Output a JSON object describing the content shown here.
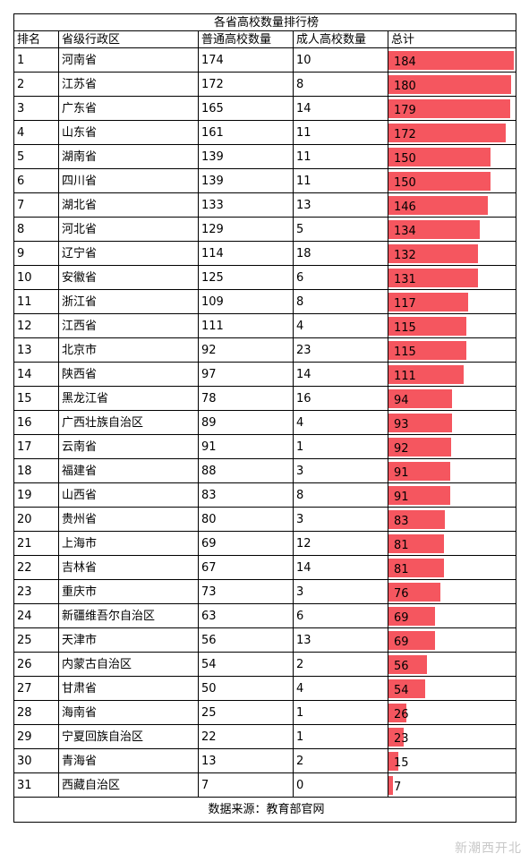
{
  "title": "各省高校数量排行榜",
  "headers": [
    "排名",
    "省级行政区",
    "普通高校数量",
    "成人高校数量",
    "总计"
  ],
  "rows": [
    {
      "rank": "1",
      "province": "河南省",
      "regular": "174",
      "adult": "10",
      "total": "184"
    },
    {
      "rank": "2",
      "province": "江苏省",
      "regular": "172",
      "adult": "8",
      "total": "180"
    },
    {
      "rank": "3",
      "province": "广东省",
      "regular": "165",
      "adult": "14",
      "total": "179"
    },
    {
      "rank": "4",
      "province": "山东省",
      "regular": "161",
      "adult": "11",
      "total": "172"
    },
    {
      "rank": "5",
      "province": "湖南省",
      "regular": "139",
      "adult": "11",
      "total": "150"
    },
    {
      "rank": "6",
      "province": "四川省",
      "regular": "139",
      "adult": "11",
      "total": "150"
    },
    {
      "rank": "7",
      "province": "湖北省",
      "regular": "133",
      "adult": "13",
      "total": "146"
    },
    {
      "rank": "8",
      "province": "河北省",
      "regular": "129",
      "adult": "5",
      "total": "134"
    },
    {
      "rank": "9",
      "province": "辽宁省",
      "regular": "114",
      "adult": "18",
      "total": "132"
    },
    {
      "rank": "10",
      "province": "安徽省",
      "regular": "125",
      "adult": "6",
      "total": "131"
    },
    {
      "rank": "11",
      "province": "浙江省",
      "regular": "109",
      "adult": "8",
      "total": "117"
    },
    {
      "rank": "12",
      "province": "江西省",
      "regular": "111",
      "adult": "4",
      "total": "115"
    },
    {
      "rank": "13",
      "province": "北京市",
      "regular": "92",
      "adult": "23",
      "total": "115"
    },
    {
      "rank": "14",
      "province": "陕西省",
      "regular": "97",
      "adult": "14",
      "total": "111"
    },
    {
      "rank": "15",
      "province": "黑龙江省",
      "regular": "78",
      "adult": "16",
      "total": "94"
    },
    {
      "rank": "16",
      "province": "广西壮族自治区",
      "regular": "89",
      "adult": "4",
      "total": "93"
    },
    {
      "rank": "17",
      "province": "云南省",
      "regular": "91",
      "adult": "1",
      "total": "92"
    },
    {
      "rank": "18",
      "province": "福建省",
      "regular": "88",
      "adult": "3",
      "total": "91"
    },
    {
      "rank": "19",
      "province": "山西省",
      "regular": "83",
      "adult": "8",
      "total": "91"
    },
    {
      "rank": "20",
      "province": "贵州省",
      "regular": "80",
      "adult": "3",
      "total": "83"
    },
    {
      "rank": "21",
      "province": "上海市",
      "regular": "69",
      "adult": "12",
      "total": "81"
    },
    {
      "rank": "22",
      "province": "吉林省",
      "regular": "67",
      "adult": "14",
      "total": "81"
    },
    {
      "rank": "23",
      "province": "重庆市",
      "regular": "73",
      "adult": "3",
      "total": "76"
    },
    {
      "rank": "24",
      "province": "新疆维吾尔自治区",
      "regular": "63",
      "adult": "6",
      "total": "69"
    },
    {
      "rank": "25",
      "province": "天津市",
      "regular": "56",
      "adult": "13",
      "total": "69"
    },
    {
      "rank": "26",
      "province": "内蒙古自治区",
      "regular": "54",
      "adult": "2",
      "total": "56"
    },
    {
      "rank": "27",
      "province": "甘肃省",
      "regular": "50",
      "adult": "4",
      "total": "54"
    },
    {
      "rank": "28",
      "province": "海南省",
      "regular": "25",
      "adult": "1",
      "total": "26"
    },
    {
      "rank": "29",
      "province": "宁夏回族自治区",
      "regular": "22",
      "adult": "1",
      "total": "23"
    },
    {
      "rank": "30",
      "province": "青海省",
      "regular": "13",
      "adult": "2",
      "total": "15"
    },
    {
      "rank": "31",
      "province": "西藏自治区",
      "regular": "7",
      "adult": "0",
      "total": "7"
    }
  ],
  "source": "数据来源：教育部官网",
  "watermark": "新潮西开北",
  "colors": {
    "bar": "#f5565f"
  }
}
